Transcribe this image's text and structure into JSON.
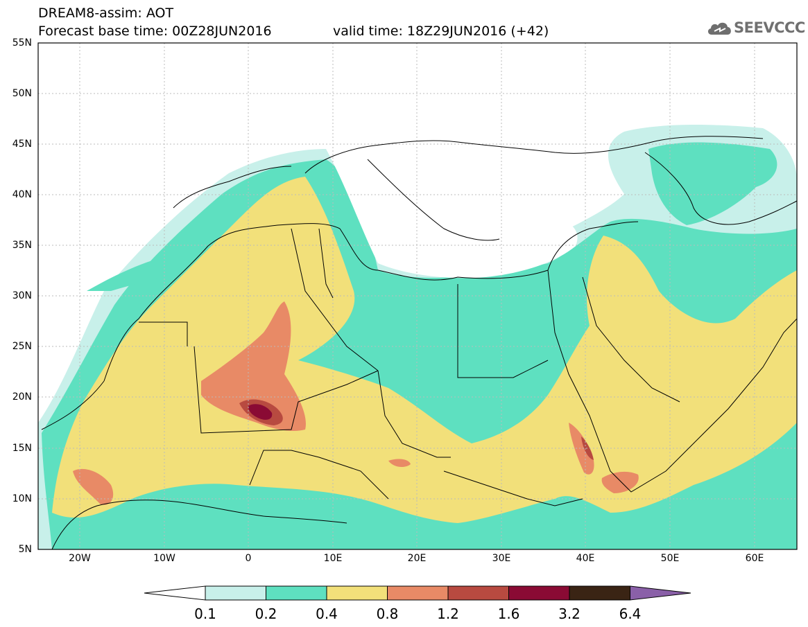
{
  "header": {
    "title": "DREAM8-assim: AOT",
    "base_time": "Forecast base time: 00Z28JUN2016",
    "valid_time": "valid time: 18Z29JUN2016 (+42)",
    "logo_text": "SEEVCCC",
    "logo_icon": "cloud-icon"
  },
  "map": {
    "lat_labels": [
      "55N",
      "50N",
      "45N",
      "40N",
      "35N",
      "30N",
      "25N",
      "20N",
      "15N",
      "10N",
      "5N"
    ],
    "lon_labels": [
      "20W",
      "10W",
      "0",
      "10E",
      "20E",
      "30E",
      "40E",
      "50E",
      "60E"
    ],
    "extent": {
      "lon_min": -25,
      "lon_max": 65,
      "lat_min": 5,
      "lat_max": 55
    },
    "grid": "dotted",
    "ocean_color": "#ffffff",
    "border_color": "#000000"
  },
  "colorbar": {
    "labels": [
      "0.1",
      "0.2",
      "0.4",
      "0.8",
      "1.2",
      "1.6",
      "3.2",
      "6.4"
    ],
    "colors": [
      "#ffffff",
      "#c8f0ea",
      "#5ee0c0",
      "#f2e07a",
      "#e88a66",
      "#b84a40",
      "#8a0a34",
      "#3a2414",
      "#8a60a8"
    ]
  }
}
